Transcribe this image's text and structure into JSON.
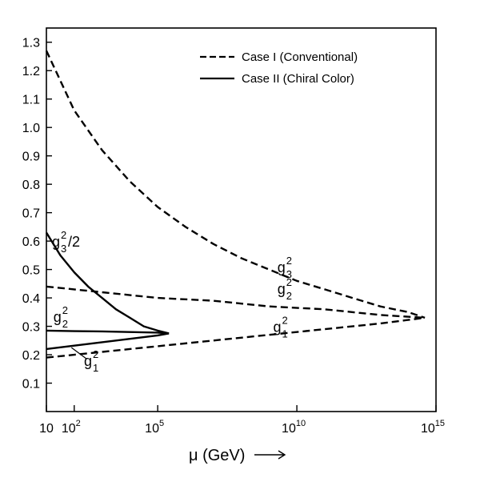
{
  "chart_data": {
    "type": "line",
    "title": "",
    "xlabel": "μ (GeV)",
    "ylabel": "",
    "xscale": "log10",
    "xlim": [
      1,
      15
    ],
    "ylim": [
      0,
      1.35
    ],
    "x_ticks": [
      {
        "value": 1,
        "label": "10",
        "sup": ""
      },
      {
        "value": 2,
        "label": "10",
        "sup": "2"
      },
      {
        "value": 5,
        "label": "10",
        "sup": "5"
      },
      {
        "value": 10,
        "label": "10",
        "sup": "10"
      },
      {
        "value": 15,
        "label": "10",
        "sup": "15"
      }
    ],
    "y_ticks": [
      0.1,
      0.2,
      0.3,
      0.4,
      0.5,
      0.6,
      0.7,
      0.8,
      0.9,
      1.0,
      1.1,
      1.2,
      1.3
    ],
    "y_tick_labels": [
      "0.1",
      "0.2",
      "0.3",
      "0.4",
      "0.5",
      "0.6",
      "0.7",
      "0.8",
      "0.9",
      "1.0",
      "1.1",
      "1.2",
      "1.3"
    ],
    "legend_position": "top-right",
    "legend": [
      {
        "label": "Case I (Conventional)",
        "style": "dashed"
      },
      {
        "label": "Case II (Chiral Color)",
        "style": "solid"
      }
    ],
    "series": [
      {
        "style": "dashed",
        "x": [
          1,
          2,
          3,
          4,
          5,
          6,
          7,
          8,
          9,
          10,
          11,
          12,
          13,
          14,
          14.6
        ],
        "y": [
          1.27,
          1.06,
          0.92,
          0.81,
          0.72,
          0.65,
          0.59,
          0.54,
          0.5,
          0.46,
          0.43,
          0.4,
          0.37,
          0.35,
          0.33
        ]
      },
      {
        "style": "dashed",
        "x": [
          1,
          3,
          5,
          7,
          9,
          11,
          13,
          14.6
        ],
        "y": [
          0.44,
          0.42,
          0.4,
          0.39,
          0.37,
          0.36,
          0.34,
          0.33
        ]
      },
      {
        "style": "dashed",
        "x": [
          1,
          3,
          5,
          7,
          9,
          11,
          13,
          14.6
        ],
        "y": [
          0.19,
          0.21,
          0.23,
          0.25,
          0.27,
          0.29,
          0.31,
          0.33
        ]
      },
      {
        "style": "solid",
        "x": [
          1,
          1.5,
          2,
          2.5,
          3,
          3.5,
          4,
          4.5,
          5,
          5.4
        ],
        "y": [
          0.63,
          0.55,
          0.49,
          0.44,
          0.4,
          0.36,
          0.33,
          0.3,
          0.285,
          0.275
        ]
      },
      {
        "style": "solid",
        "x": [
          1,
          2,
          3,
          4,
          5,
          5.4
        ],
        "y": [
          0.285,
          0.283,
          0.282,
          0.28,
          0.278,
          0.275
        ]
      },
      {
        "style": "solid",
        "x": [
          1,
          2,
          3,
          4,
          5,
          5.4
        ],
        "y": [
          0.22,
          0.232,
          0.244,
          0.256,
          0.268,
          0.275
        ]
      }
    ],
    "annotations": [
      {
        "base": "g",
        "sub": "3",
        "sup": "2",
        "suffix": "/2",
        "x": 1.2,
        "y": 0.58
      },
      {
        "base": "g",
        "sub": "2",
        "sup": "2",
        "suffix": "",
        "x": 1.25,
        "y": 0.315
      },
      {
        "base": "g",
        "sub": "1",
        "sup": "2",
        "suffix": "",
        "x": 2.35,
        "y": 0.16
      },
      {
        "base": "g",
        "sub": "3",
        "sup": "2",
        "suffix": "",
        "x": 9.3,
        "y": 0.49
      },
      {
        "base": "g",
        "sub": "2",
        "sup": "2",
        "suffix": "",
        "x": 9.3,
        "y": 0.415
      },
      {
        "base": "g",
        "sub": "1",
        "sup": "2",
        "suffix": "",
        "x": 9.15,
        "y": 0.28
      }
    ]
  }
}
